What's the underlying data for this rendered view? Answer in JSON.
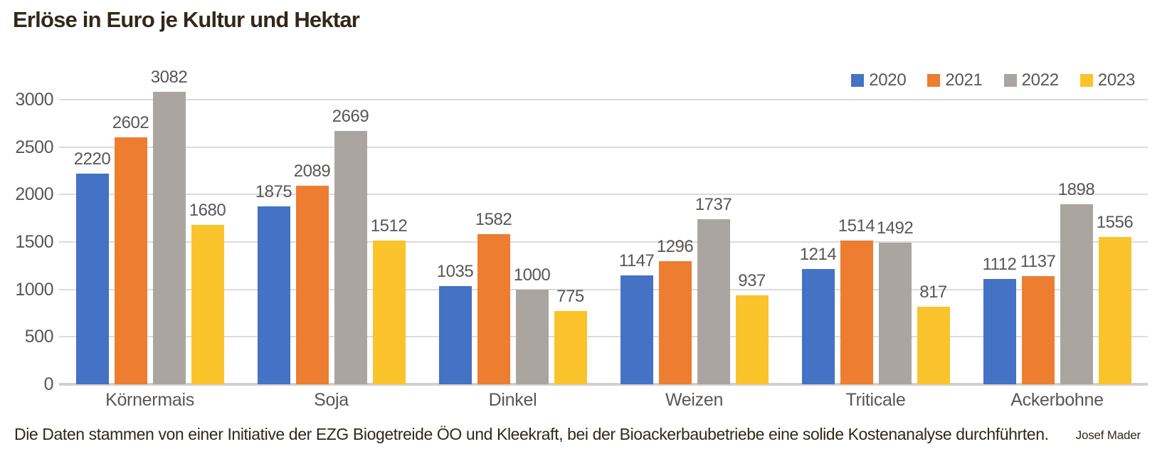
{
  "title": "Erlöse in Euro je Kultur und Hektar",
  "chart_data": {
    "type": "bar",
    "title": "Erlöse in Euro je Kultur und Hektar",
    "categories": [
      "Körnermais",
      "Soja",
      "Dinkel",
      "Weizen",
      "Triticale",
      "Ackerbohne"
    ],
    "series": [
      {
        "name": "2020",
        "color": "#4472c4",
        "values": [
          2220,
          1875,
          1035,
          1147,
          1214,
          1112
        ]
      },
      {
        "name": "2021",
        "color": "#ed7d31",
        "values": [
          2602,
          2089,
          1582,
          1296,
          1514,
          1137
        ]
      },
      {
        "name": "2022",
        "color": "#aba5a2",
        "values": [
          3082,
          2669,
          1000,
          1737,
          1492,
          1898
        ]
      },
      {
        "name": "2023",
        "color": "#fbc32b",
        "values": [
          1680,
          1512,
          775,
          937,
          817,
          1556
        ]
      }
    ],
    "xlabel": "",
    "ylabel": "",
    "ylim": [
      0,
      3000
    ],
    "yticks": [
      0,
      500,
      1000,
      1500,
      2000,
      2500,
      3000
    ],
    "grid": true,
    "legend_position": "top-right",
    "value_labels_shown": true
  },
  "footer": {
    "source": "Die Daten stammen von einer Initiative der EZG Biogetreide ÖO und Kleekraft, bei der Bioackerbaubetriebe eine solide Kostenanalyse durchführten.",
    "author": "Josef Mader"
  },
  "colors": {
    "title_text": "#33271b",
    "label_text": "#595755",
    "gridline": "#dddbda",
    "axis_line": "#d2d0ce",
    "background": "#ffffff"
  }
}
